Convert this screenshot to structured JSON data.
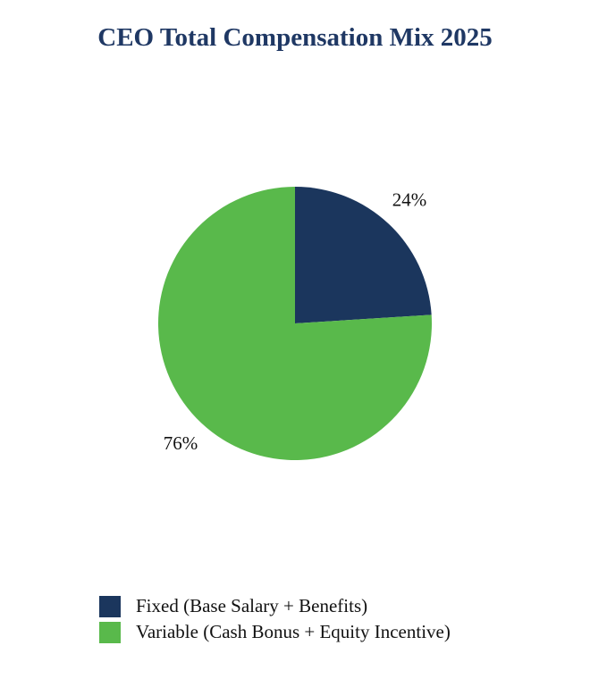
{
  "chart_data": {
    "type": "pie",
    "title": "CEO Total Compensation Mix 2025",
    "title_color": "#1f3864",
    "slices": [
      {
        "label": "Fixed (Base Salary + Benefits)",
        "value": 24,
        "display": "24%",
        "color": "#1b365d"
      },
      {
        "label": "Variable (Cash Bonus + Equity Incentive)",
        "value": 76,
        "display": "76%",
        "color": "#59b94b"
      }
    ],
    "start_angle": "12 o'clock",
    "direction": "clockwise",
    "legend_position": "bottom"
  }
}
